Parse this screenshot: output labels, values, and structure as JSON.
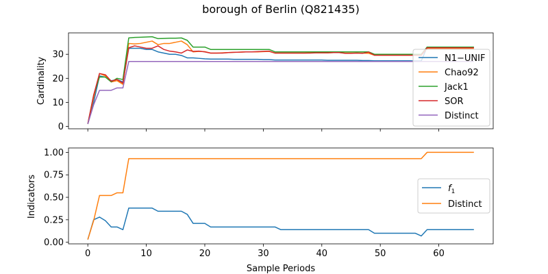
{
  "title": "borough of Berlin (Q821435)",
  "colors": {
    "blue": "#1f77b4",
    "orange": "#ff7f0e",
    "green": "#2ca02c",
    "red": "#d62728",
    "purple": "#9467bd"
  },
  "chart_data": [
    {
      "type": "line",
      "ylabel": "Cardinality",
      "xlim": [
        -3.3,
        69.3
      ],
      "ylim": [
        -1.0,
        38.9
      ],
      "xticks": [
        0,
        10,
        20,
        30,
        40,
        50,
        60
      ],
      "yticks": [
        0,
        10,
        20,
        30
      ],
      "show_xtick_labels": false,
      "legend": "right",
      "series": [
        {
          "name": "N1−UNIF",
          "color": "#1f77b4",
          "y": [
            1,
            10,
            21,
            20.5,
            19,
            19.5,
            18.5,
            32.5,
            32.5,
            32.5,
            32,
            32,
            31,
            30.5,
            30,
            30,
            29.5,
            28.5,
            28.5,
            28.3,
            28.1,
            28,
            28,
            28,
            28,
            27.9,
            27.9,
            27.9,
            27.9,
            27.9,
            27.8,
            27.8,
            27.6,
            27.6,
            27.6,
            27.6,
            27.6,
            27.6,
            27.6,
            27.6,
            27.6,
            27.5,
            27.5,
            27.5,
            27.5,
            27.5,
            27.5,
            27.4,
            27.4,
            27.3,
            27.3,
            27.3,
            27.3,
            27.3,
            27.3,
            27.3,
            27.2,
            27.2,
            33,
            33,
            33,
            33,
            33,
            33,
            33,
            33,
            33
          ]
        },
        {
          "name": "Chao92",
          "color": "#ff7f0e",
          "y": [
            1,
            12,
            22,
            21,
            18.5,
            19,
            17.5,
            34.5,
            34.3,
            34.5,
            35,
            35.5,
            34,
            34.5,
            34.5,
            35,
            35.5,
            34,
            31,
            31.2,
            31.1,
            30.5,
            30.5,
            30.6,
            30.7,
            30.8,
            30.9,
            31,
            31,
            31,
            31.1,
            31.2,
            30.5,
            30.5,
            30.5,
            30.5,
            30.5,
            30.5,
            30.6,
            30.6,
            30.6,
            30.6,
            30.7,
            30.7,
            30.5,
            30.5,
            30.5,
            30.5,
            30.4,
            29.6,
            29.6,
            29.6,
            29.6,
            29.6,
            29.6,
            29.6,
            29.6,
            29.6,
            32.5,
            32.5,
            32.5,
            32.5,
            32.5,
            32.5,
            32.5,
            32.5,
            32.5
          ]
        },
        {
          "name": "Jack1",
          "color": "#2ca02c",
          "y": [
            1,
            13,
            20.5,
            20.5,
            18.5,
            20,
            19.5,
            36.8,
            37,
            37.1,
            37.2,
            37.3,
            36.5,
            36.6,
            36.7,
            36.7,
            36.8,
            35.8,
            33,
            33,
            33,
            32,
            32,
            32,
            32,
            32,
            32,
            32,
            32,
            32,
            32,
            32,
            31,
            31,
            31,
            31,
            31,
            31,
            31,
            31,
            31,
            31,
            31,
            31,
            31,
            31,
            31,
            31,
            31,
            30,
            30,
            30,
            30,
            30,
            30,
            30,
            30,
            30,
            33,
            33,
            33,
            33,
            33,
            33,
            33,
            33,
            33
          ]
        },
        {
          "name": "SOR",
          "color": "#d62728",
          "y": [
            1,
            13,
            22,
            21.5,
            18.8,
            19.5,
            18,
            32.7,
            33.5,
            33,
            32.5,
            32.5,
            33.5,
            32,
            31.3,
            31,
            30.5,
            31.8,
            31.2,
            31.3,
            31,
            30.5,
            30.5,
            30.5,
            30.7,
            30.8,
            30.9,
            31,
            31,
            31.1,
            31.2,
            31.3,
            30.5,
            30.5,
            30.5,
            30.5,
            30.5,
            30.5,
            30.5,
            30.6,
            30.6,
            30.6,
            30.7,
            30.7,
            30.4,
            30.4,
            30.5,
            30.4,
            30.9,
            29.6,
            29.6,
            29.6,
            29.6,
            29.6,
            29.6,
            29.6,
            29.6,
            29.6,
            32.7,
            32.7,
            32.7,
            32.7,
            32.7,
            32.7,
            32.7,
            32.7,
            32.7
          ]
        },
        {
          "name": "Distinct",
          "color": "#9467bd",
          "y": [
            1,
            9,
            15,
            15,
            15,
            16,
            16,
            27,
            27,
            27,
            27,
            27,
            27,
            27,
            27,
            27,
            27,
            27,
            27,
            27,
            27,
            27,
            27,
            27,
            27,
            27,
            27,
            27,
            27,
            27,
            27,
            27,
            27,
            27,
            27,
            27,
            27,
            27,
            27,
            27,
            27,
            27,
            27,
            27,
            27,
            27,
            27,
            27,
            27,
            27,
            27,
            27,
            27,
            27,
            27,
            27,
            27,
            27,
            27,
            27,
            27,
            27,
            27,
            27,
            27,
            27,
            27
          ]
        }
      ]
    },
    {
      "type": "line",
      "xlabel": "Sample Periods",
      "ylabel": "Indicators",
      "xlim": [
        -3.3,
        69.3
      ],
      "ylim": [
        -0.018,
        1.049
      ],
      "xticks": [
        0,
        10,
        20,
        30,
        40,
        50,
        60
      ],
      "yticks": [
        0.0,
        0.25,
        0.5,
        0.75,
        1.0
      ],
      "show_xtick_labels": true,
      "legend": "right",
      "series": [
        {
          "name": "f1",
          "color": "#1f77b4",
          "y": [
            0.03,
            0.25,
            0.28,
            0.24,
            0.17,
            0.17,
            0.14,
            0.38,
            0.38,
            0.38,
            0.38,
            0.38,
            0.345,
            0.345,
            0.345,
            0.345,
            0.345,
            0.31,
            0.21,
            0.21,
            0.21,
            0.17,
            0.17,
            0.17,
            0.17,
            0.17,
            0.17,
            0.17,
            0.17,
            0.17,
            0.17,
            0.17,
            0.17,
            0.14,
            0.14,
            0.14,
            0.14,
            0.14,
            0.14,
            0.14,
            0.14,
            0.14,
            0.14,
            0.14,
            0.14,
            0.14,
            0.14,
            0.14,
            0.14,
            0.1,
            0.1,
            0.1,
            0.1,
            0.1,
            0.1,
            0.1,
            0.1,
            0.07,
            0.14,
            0.14,
            0.14,
            0.14,
            0.14,
            0.14,
            0.14,
            0.14,
            0.14
          ]
        },
        {
          "name": "Distinct",
          "color": "#ff7f0e",
          "y": [
            0.03,
            0.24,
            0.52,
            0.52,
            0.52,
            0.55,
            0.55,
            0.93,
            0.93,
            0.93,
            0.93,
            0.93,
            0.93,
            0.93,
            0.93,
            0.93,
            0.93,
            0.93,
            0.93,
            0.93,
            0.93,
            0.93,
            0.93,
            0.93,
            0.93,
            0.93,
            0.93,
            0.93,
            0.93,
            0.93,
            0.93,
            0.93,
            0.93,
            0.93,
            0.93,
            0.93,
            0.93,
            0.93,
            0.93,
            0.93,
            0.93,
            0.93,
            0.93,
            0.93,
            0.93,
            0.93,
            0.93,
            0.93,
            0.93,
            0.93,
            0.93,
            0.93,
            0.93,
            0.93,
            0.93,
            0.93,
            0.93,
            0.93,
            1.0,
            1.0,
            1.0,
            1.0,
            1.0,
            1.0,
            1.0,
            1.0,
            1.0
          ]
        }
      ]
    }
  ]
}
